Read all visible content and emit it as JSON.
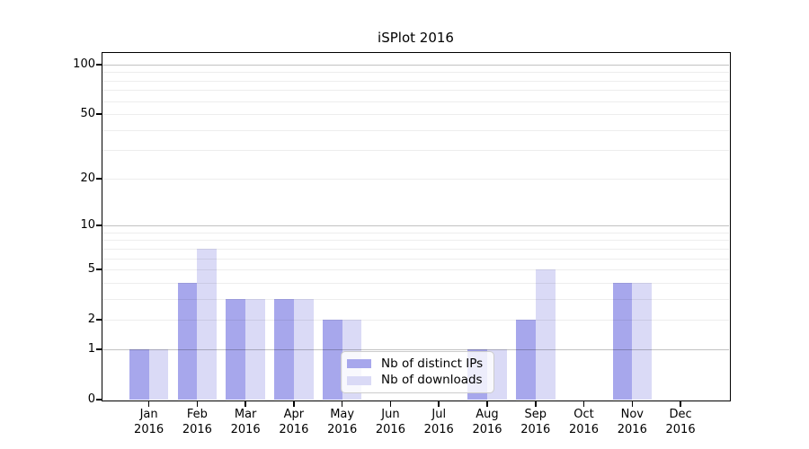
{
  "figure": {
    "background": "#ffffff",
    "plot_background": "#ffffff",
    "axis_color": "#000000",
    "major_grid_color": "rgba(0,0,0,0.24)",
    "minor_grid_color": "rgba(0,0,0,0.07)"
  },
  "chart_data": {
    "type": "bar",
    "title": "iSPlot 2016",
    "categories": [
      "Jan",
      "Feb",
      "Mar",
      "Apr",
      "May",
      "Jun",
      "Jul",
      "Aug",
      "Sep",
      "Oct",
      "Nov",
      "Dec"
    ],
    "year_label": "2016",
    "series": [
      {
        "name": "Nb of distinct IPs",
        "color": "#a7a7ec",
        "values": [
          1,
          4,
          3,
          3,
          2,
          0,
          0,
          1,
          2,
          0,
          4,
          0
        ]
      },
      {
        "name": "Nb of downloads",
        "color": "#dadaf6",
        "values": [
          1,
          7,
          3,
          3,
          2,
          0,
          0,
          1,
          5,
          0,
          4,
          0
        ]
      }
    ],
    "xlabel": "",
    "ylabel": "",
    "y_axis": {
      "scale": "log10(value+1)",
      "tick_values": [
        0,
        1,
        2,
        5,
        10,
        20,
        50,
        100
      ],
      "major_gridlines": [
        1,
        10,
        100
      ],
      "minor_gridlines": [
        2,
        3,
        4,
        5,
        6,
        7,
        8,
        9,
        20,
        30,
        40,
        50,
        60,
        70,
        80,
        90
      ],
      "range": [
        0,
        117
      ]
    },
    "grid": true,
    "legend_position": "lower center"
  }
}
